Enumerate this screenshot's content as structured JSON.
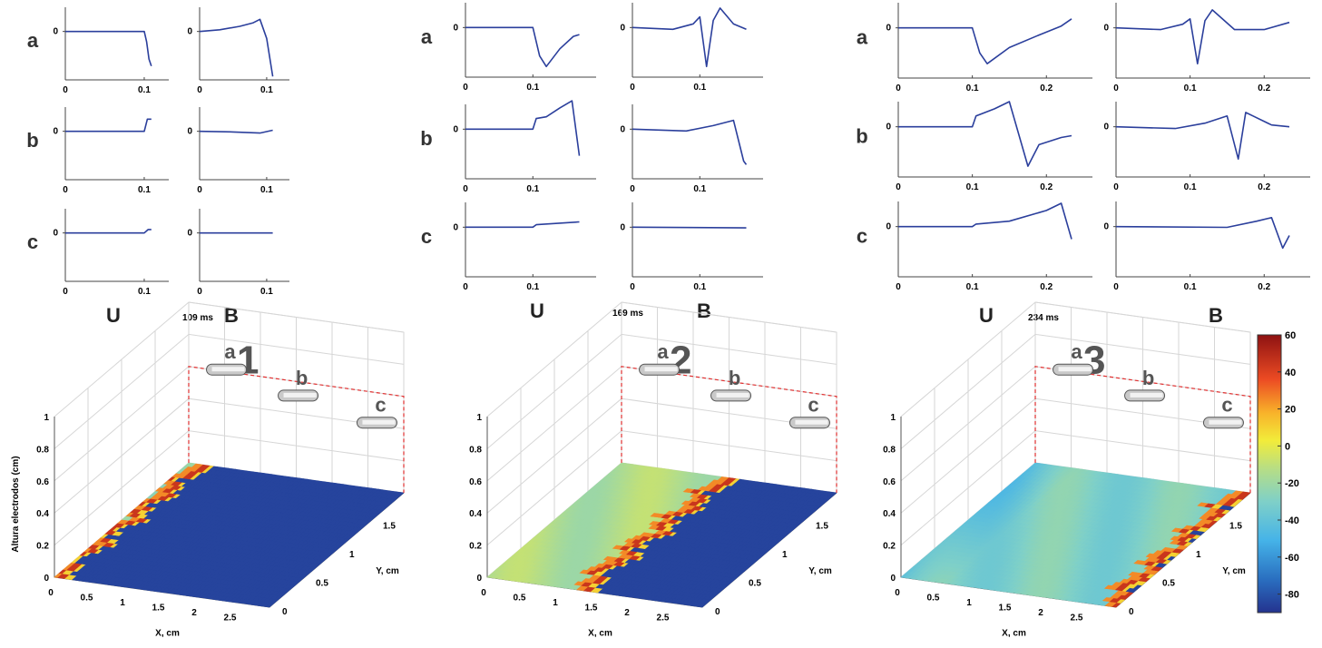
{
  "figure": {
    "panels": [
      {
        "id": "1",
        "time_label": "109 ms"
      },
      {
        "id": "2",
        "time_label": "169 ms"
      },
      {
        "id": "3",
        "time_label": "234 ms"
      }
    ],
    "trace_rows": [
      "a",
      "b",
      "c"
    ],
    "trace_cols": [
      "U",
      "B"
    ],
    "electrode_labels": [
      "a",
      "b",
      "c"
    ],
    "xlabel": "X, cm",
    "ylabel": "Y, cm",
    "zlabel": "Altura electrodos (cm)",
    "x_ticks": [
      "0",
      "0.5",
      "1",
      "1.5",
      "2",
      "2.5"
    ],
    "y_ticks": [
      "0",
      "0.5",
      "1",
      "1.5"
    ],
    "z_ticks": [
      "0",
      "0.2",
      "0.4",
      "0.6",
      "0.8",
      "1"
    ],
    "colorbar": {
      "ticks": [
        "60",
        "40",
        "20",
        "0",
        "-20",
        "-40",
        "-60",
        "-80"
      ],
      "range": [
        -90,
        60
      ]
    }
  },
  "chart_data": [
    {
      "type": "line",
      "title": "109 ms",
      "traces": [
        {
          "row": "a",
          "col": "U",
          "x": [
            0,
            0.1,
            0.103,
            0.106,
            0.109
          ],
          "y": [
            0,
            0,
            -0.3,
            -0.8,
            -1.0
          ],
          "xticks": [
            0,
            0.1
          ]
        },
        {
          "row": "a",
          "col": "B",
          "x": [
            0,
            0.03,
            0.06,
            0.08,
            0.09,
            0.1,
            0.109
          ],
          "y": [
            0,
            0.05,
            0.15,
            0.25,
            0.35,
            -0.2,
            -1.3
          ],
          "xticks": [
            0,
            0.1
          ]
        },
        {
          "row": "b",
          "col": "U",
          "x": [
            0,
            0.1,
            0.104,
            0.109
          ],
          "y": [
            0,
            0,
            0.35,
            0.35
          ],
          "xticks": [
            0,
            0.1
          ]
        },
        {
          "row": "b",
          "col": "B",
          "x": [
            0,
            0.05,
            0.09,
            0.109
          ],
          "y": [
            0,
            -0.02,
            -0.05,
            0.03
          ],
          "xticks": [
            0,
            0.1
          ]
        },
        {
          "row": "c",
          "col": "U",
          "x": [
            0,
            0.1,
            0.105,
            0.109
          ],
          "y": [
            0,
            0,
            0.1,
            0.1
          ],
          "xticks": [
            0,
            0.1
          ]
        },
        {
          "row": "c",
          "col": "B",
          "x": [
            0,
            0.109
          ],
          "y": [
            0,
            0
          ],
          "xticks": [
            0,
            0.1
          ]
        }
      ]
    },
    {
      "type": "line",
      "title": "169 ms",
      "traces": [
        {
          "row": "a",
          "col": "U",
          "x": [
            0,
            0.1,
            0.11,
            0.12,
            0.14,
            0.16,
            0.169
          ],
          "y": [
            0,
            0,
            -0.8,
            -1.1,
            -0.6,
            -0.25,
            -0.2
          ],
          "xticks": [
            0,
            0.1
          ]
        },
        {
          "row": "a",
          "col": "B",
          "x": [
            0,
            0.06,
            0.09,
            0.1,
            0.11,
            0.12,
            0.13,
            0.15,
            0.169
          ],
          "y": [
            0,
            -0.05,
            0.1,
            0.3,
            -1.1,
            0.2,
            0.55,
            0.1,
            -0.05
          ],
          "xticks": [
            0,
            0.1
          ]
        },
        {
          "row": "b",
          "col": "U",
          "x": [
            0,
            0.1,
            0.105,
            0.12,
            0.14,
            0.158,
            0.169
          ],
          "y": [
            0,
            0,
            0.3,
            0.35,
            0.6,
            0.8,
            -0.75
          ],
          "xticks": [
            0,
            0.1
          ]
        },
        {
          "row": "b",
          "col": "B",
          "x": [
            0,
            0.08,
            0.12,
            0.15,
            0.165,
            0.169
          ],
          "y": [
            0,
            -0.05,
            0.1,
            0.25,
            -0.9,
            -1.0
          ],
          "xticks": [
            0,
            0.1
          ]
        },
        {
          "row": "c",
          "col": "U",
          "x": [
            0,
            0.1,
            0.105,
            0.169
          ],
          "y": [
            0,
            0,
            0.07,
            0.15
          ],
          "xticks": [
            0,
            0.1
          ]
        },
        {
          "row": "c",
          "col": "B",
          "x": [
            0,
            0.169
          ],
          "y": [
            0,
            -0.02
          ],
          "xticks": [
            0,
            0.1
          ]
        }
      ]
    },
    {
      "type": "line",
      "title": "234 ms",
      "traces": [
        {
          "row": "a",
          "col": "U",
          "x": [
            0,
            0.1,
            0.11,
            0.12,
            0.15,
            0.19,
            0.22,
            0.234
          ],
          "y": [
            0,
            0,
            -0.7,
            -1.0,
            -0.55,
            -0.2,
            0.05,
            0.25
          ],
          "xticks": [
            0,
            0.1,
            0.2
          ]
        },
        {
          "row": "a",
          "col": "B",
          "x": [
            0,
            0.06,
            0.09,
            0.1,
            0.11,
            0.12,
            0.13,
            0.16,
            0.2,
            0.234
          ],
          "y": [
            0,
            -0.05,
            0.1,
            0.25,
            -1.0,
            0.2,
            0.5,
            -0.05,
            -0.05,
            0.15
          ],
          "xticks": [
            0,
            0.1,
            0.2
          ]
        },
        {
          "row": "b",
          "col": "U",
          "x": [
            0,
            0.1,
            0.105,
            0.13,
            0.15,
            0.175,
            0.19,
            0.22,
            0.234
          ],
          "y": [
            0,
            0,
            0.3,
            0.5,
            0.7,
            -1.1,
            -0.5,
            -0.3,
            -0.25
          ],
          "xticks": [
            0,
            0.1,
            0.2
          ]
        },
        {
          "row": "b",
          "col": "B",
          "x": [
            0,
            0.08,
            0.12,
            0.15,
            0.165,
            0.175,
            0.185,
            0.21,
            0.234
          ],
          "y": [
            0,
            -0.05,
            0.1,
            0.3,
            -0.9,
            0.4,
            0.3,
            0.05,
            0.0
          ],
          "xticks": [
            0,
            0.1,
            0.2
          ]
        },
        {
          "row": "c",
          "col": "U",
          "x": [
            0,
            0.1,
            0.105,
            0.15,
            0.2,
            0.22,
            0.234
          ],
          "y": [
            0,
            0,
            0.07,
            0.15,
            0.45,
            0.65,
            -0.35
          ],
          "xticks": [
            0,
            0.1,
            0.2
          ]
        },
        {
          "row": "c",
          "col": "B",
          "x": [
            0,
            0.15,
            0.19,
            0.21,
            0.225,
            0.234
          ],
          "y": [
            0,
            -0.02,
            0.15,
            0.25,
            -0.6,
            -0.25
          ],
          "xticks": [
            0,
            0.1,
            0.2
          ]
        }
      ]
    },
    {
      "type": "heatmap",
      "title": "1",
      "xlabel": "X, cm",
      "ylabel": "Y, cm",
      "zlabel": "Altura electrodos (cm)",
      "xlim": [
        0,
        3
      ],
      "ylim": [
        0,
        2
      ],
      "zlim": [
        0,
        1
      ],
      "front_x_at_y0": 0.05,
      "front_x_at_y2": 0.25,
      "behind_front_value": -20,
      "ahead_of_front_value": -85
    },
    {
      "type": "heatmap",
      "title": "2",
      "xlabel": "X, cm",
      "ylabel": "Y, cm",
      "zlabel": "Altura electrodos (cm)",
      "xlim": [
        0,
        3
      ],
      "ylim": [
        0,
        2
      ],
      "zlim": [
        0,
        1
      ],
      "front_x_at_y0": 1.35,
      "front_x_at_y2": 1.55,
      "behind_front_value": -15,
      "ahead_of_front_value": -85
    },
    {
      "type": "heatmap",
      "title": "3",
      "xlabel": "X, cm",
      "ylabel": "Y, cm",
      "zlabel": "Altura electrodos (cm)",
      "xlim": [
        0,
        3
      ],
      "ylim": [
        0,
        2
      ],
      "zlim": [
        0,
        1
      ],
      "front_x_at_y0": 2.95,
      "front_x_at_y2": 2.95,
      "behind_front_value": -30,
      "ahead_of_front_value": -85
    }
  ]
}
